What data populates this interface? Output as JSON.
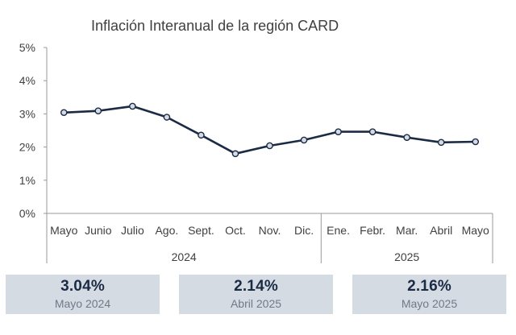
{
  "chart_data": {
    "type": "line",
    "title": "Inflación Interanual de la región CARD",
    "categories": [
      "Mayo",
      "Junio",
      "Julio",
      "Ago.",
      "Sept.",
      "Oct.",
      "Nov.",
      "Dic.",
      "Ene.",
      "Febr.",
      "Mar.",
      "Abril",
      "Mayo"
    ],
    "year_groups": [
      {
        "label": "2024",
        "span": 8
      },
      {
        "label": "2025",
        "span": 5
      }
    ],
    "series": [
      {
        "values": [
          3.04,
          3.09,
          3.23,
          2.9,
          2.36,
          1.8,
          2.04,
          2.21,
          2.46,
          2.46,
          2.29,
          2.14,
          2.16
        ]
      }
    ],
    "ylim": [
      0,
      5
    ],
    "yticks": [
      "0%",
      "1%",
      "2%",
      "3%",
      "4%",
      "5%"
    ],
    "grid": false,
    "line_color": "#1b2a45",
    "marker_fill": "#d5dbe3"
  },
  "kpis": [
    {
      "value": "3.04%",
      "label": "Mayo 2024"
    },
    {
      "value": "2.14%",
      "label": "Abril 2025"
    },
    {
      "value": "2.16%",
      "label": "Mayo 2025"
    }
  ]
}
